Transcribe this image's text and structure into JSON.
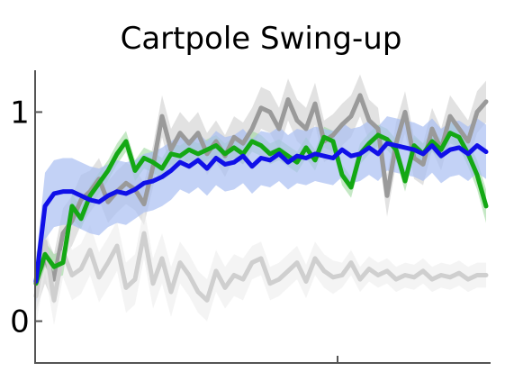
{
  "chart_data": {
    "type": "line",
    "title": "Cartpole Swing-up",
    "xlabel": "",
    "ylabel": "",
    "xlim": [
      0,
      100
    ],
    "ylim": [
      -0.2,
      1.2
    ],
    "yticks": [
      0,
      1
    ],
    "ytick_labels": [
      "0",
      "1"
    ],
    "xticks": [
      67
    ],
    "grid": false,
    "legend": "none",
    "x": [
      0,
      2,
      4,
      6,
      8,
      10,
      12,
      14,
      16,
      18,
      20,
      22,
      24,
      26,
      28,
      30,
      32,
      34,
      36,
      38,
      40,
      42,
      44,
      46,
      48,
      50,
      52,
      54,
      56,
      58,
      60,
      62,
      64,
      66,
      68,
      70,
      72,
      74,
      76,
      78,
      80,
      82,
      84,
      86,
      88,
      90,
      92,
      94,
      96,
      98,
      100
    ],
    "series": [
      {
        "color": "#9a9a9a",
        "values": [
          0.19,
          0.3,
          0.2,
          0.42,
          0.48,
          0.58,
          0.62,
          0.68,
          0.57,
          0.62,
          0.66,
          0.63,
          0.56,
          0.74,
          0.98,
          0.82,
          0.9,
          0.85,
          0.9,
          0.8,
          0.86,
          0.79,
          0.88,
          0.85,
          0.92,
          1.02,
          1.0,
          0.92,
          1.06,
          0.96,
          0.92,
          1.04,
          0.86,
          0.89,
          0.94,
          0.98,
          1.08,
          0.96,
          0.92,
          0.6,
          0.85,
          1.0,
          0.78,
          0.75,
          0.92,
          0.82,
          0.98,
          0.92,
          0.86,
          1.0,
          1.05
        ],
        "band": [
          0.14,
          0.12,
          0.12,
          0.12,
          0.12,
          0.12,
          0.1,
          0.1,
          0.1,
          0.1,
          0.1,
          0.1,
          0.1,
          0.1,
          0.1,
          0.1,
          0.1,
          0.1,
          0.1,
          0.1,
          0.1,
          0.1,
          0.1,
          0.1,
          0.1,
          0.1,
          0.1,
          0.1,
          0.1,
          0.1,
          0.1,
          0.1,
          0.1,
          0.1,
          0.1,
          0.1,
          0.1,
          0.1,
          0.1,
          0.1,
          0.1,
          0.1,
          0.1,
          0.1,
          0.1,
          0.1,
          0.1,
          0.1,
          0.1,
          0.1,
          0.1
        ]
      },
      {
        "color": "#cfcfcf",
        "values": [
          0.12,
          0.38,
          0.1,
          0.33,
          0.22,
          0.25,
          0.34,
          0.21,
          0.28,
          0.36,
          0.16,
          0.2,
          0.42,
          0.18,
          0.3,
          0.14,
          0.28,
          0.22,
          0.14,
          0.1,
          0.24,
          0.16,
          0.22,
          0.2,
          0.28,
          0.3,
          0.18,
          0.2,
          0.24,
          0.28,
          0.19,
          0.3,
          0.24,
          0.21,
          0.22,
          0.28,
          0.2,
          0.25,
          0.22,
          0.24,
          0.2,
          0.22,
          0.21,
          0.24,
          0.2,
          0.22,
          0.21,
          0.23,
          0.2,
          0.22,
          0.22
        ],
        "band": [
          0.14,
          0.14,
          0.12,
          0.12,
          0.12,
          0.12,
          0.12,
          0.12,
          0.12,
          0.12,
          0.12,
          0.12,
          0.12,
          0.12,
          0.12,
          0.12,
          0.1,
          0.1,
          0.1,
          0.1,
          0.1,
          0.1,
          0.1,
          0.1,
          0.08,
          0.08,
          0.08,
          0.08,
          0.08,
          0.08,
          0.08,
          0.08,
          0.08,
          0.08,
          0.06,
          0.06,
          0.06,
          0.06,
          0.06,
          0.06,
          0.06,
          0.06,
          0.06,
          0.06,
          0.06,
          0.06,
          0.06,
          0.06,
          0.06,
          0.06,
          0.06
        ]
      },
      {
        "color": "#14a814",
        "values": [
          0.18,
          0.32,
          0.26,
          0.28,
          0.55,
          0.49,
          0.6,
          0.66,
          0.72,
          0.8,
          0.86,
          0.72,
          0.78,
          0.76,
          0.73,
          0.8,
          0.79,
          0.82,
          0.8,
          0.82,
          0.84,
          0.8,
          0.83,
          0.8,
          0.86,
          0.84,
          0.8,
          0.82,
          0.79,
          0.76,
          0.83,
          0.77,
          0.88,
          0.86,
          0.7,
          0.64,
          0.8,
          0.85,
          0.89,
          0.87,
          0.82,
          0.67,
          0.84,
          0.8,
          0.86,
          0.82,
          0.9,
          0.88,
          0.8,
          0.7,
          0.55
        ],
        "band": [
          0.06,
          0.06,
          0.06,
          0.06,
          0.06,
          0.05,
          0.05,
          0.05,
          0.05,
          0.05,
          0.05,
          0.05,
          0.05,
          0.05,
          0.05,
          0.05,
          0.05,
          0.05,
          0.05,
          0.05,
          0.05,
          0.05,
          0.05,
          0.05,
          0.05,
          0.05,
          0.05,
          0.05,
          0.05,
          0.05,
          0.05,
          0.05,
          0.05,
          0.05,
          0.05,
          0.05,
          0.05,
          0.05,
          0.05,
          0.05,
          0.05,
          0.05,
          0.05,
          0.05,
          0.05,
          0.05,
          0.05,
          0.05,
          0.06,
          0.07,
          0.08
        ]
      },
      {
        "color": "#1010e8",
        "values": [
          0.19,
          0.55,
          0.61,
          0.62,
          0.62,
          0.6,
          0.58,
          0.57,
          0.6,
          0.62,
          0.61,
          0.63,
          0.66,
          0.67,
          0.69,
          0.72,
          0.76,
          0.74,
          0.77,
          0.73,
          0.78,
          0.75,
          0.76,
          0.79,
          0.74,
          0.78,
          0.77,
          0.8,
          0.76,
          0.79,
          0.78,
          0.8,
          0.79,
          0.78,
          0.82,
          0.79,
          0.8,
          0.83,
          0.8,
          0.85,
          0.84,
          0.83,
          0.82,
          0.8,
          0.84,
          0.79,
          0.82,
          0.83,
          0.8,
          0.84,
          0.81
        ],
        "band": [
          0.1,
          0.16,
          0.16,
          0.16,
          0.16,
          0.16,
          0.16,
          0.16,
          0.15,
          0.15,
          0.15,
          0.14,
          0.14,
          0.14,
          0.14,
          0.14,
          0.13,
          0.13,
          0.13,
          0.13,
          0.13,
          0.13,
          0.13,
          0.13,
          0.13,
          0.13,
          0.13,
          0.13,
          0.13,
          0.13,
          0.13,
          0.13,
          0.13,
          0.13,
          0.13,
          0.13,
          0.13,
          0.13,
          0.13,
          0.13,
          0.13,
          0.13,
          0.13,
          0.13,
          0.13,
          0.13,
          0.13,
          0.13,
          0.13,
          0.13,
          0.13
        ]
      }
    ],
    "band_colors": [
      "#cfcfcf",
      "#ececec",
      "#9fd89f",
      "#aabff2"
    ]
  }
}
